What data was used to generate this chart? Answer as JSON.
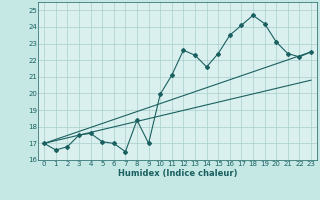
{
  "xlabel": "Humidex (Indice chaleur)",
  "background_color": "#c5e8e5",
  "grid_color": "#a8cece",
  "plot_bg": "#daf0ee",
  "line_color": "#1a6060",
  "xlim": [
    -0.5,
    23.5
  ],
  "ylim": [
    16,
    25.5
  ],
  "yticks": [
    16,
    17,
    18,
    19,
    20,
    21,
    22,
    23,
    24,
    25
  ],
  "xticks": [
    0,
    1,
    2,
    3,
    4,
    5,
    6,
    7,
    8,
    9,
    10,
    11,
    12,
    13,
    14,
    15,
    16,
    17,
    18,
    19,
    20,
    21,
    22,
    23
  ],
  "series1_x": [
    0,
    1,
    2,
    3,
    4,
    5,
    6,
    7,
    8,
    9,
    10,
    11,
    12,
    13,
    14,
    15,
    16,
    17,
    18,
    19,
    20,
    21,
    22,
    23
  ],
  "series1_y": [
    17.0,
    16.6,
    16.8,
    17.5,
    17.6,
    17.1,
    17.0,
    16.5,
    18.4,
    17.0,
    19.95,
    21.1,
    22.6,
    22.3,
    21.6,
    22.4,
    23.5,
    24.1,
    24.7,
    24.2,
    23.1,
    22.4,
    22.2,
    22.5
  ],
  "series2_x": [
    0,
    23
  ],
  "series2_y": [
    17.0,
    20.8
  ],
  "series3_x": [
    0,
    23
  ],
  "series3_y": [
    17.0,
    22.5
  ]
}
